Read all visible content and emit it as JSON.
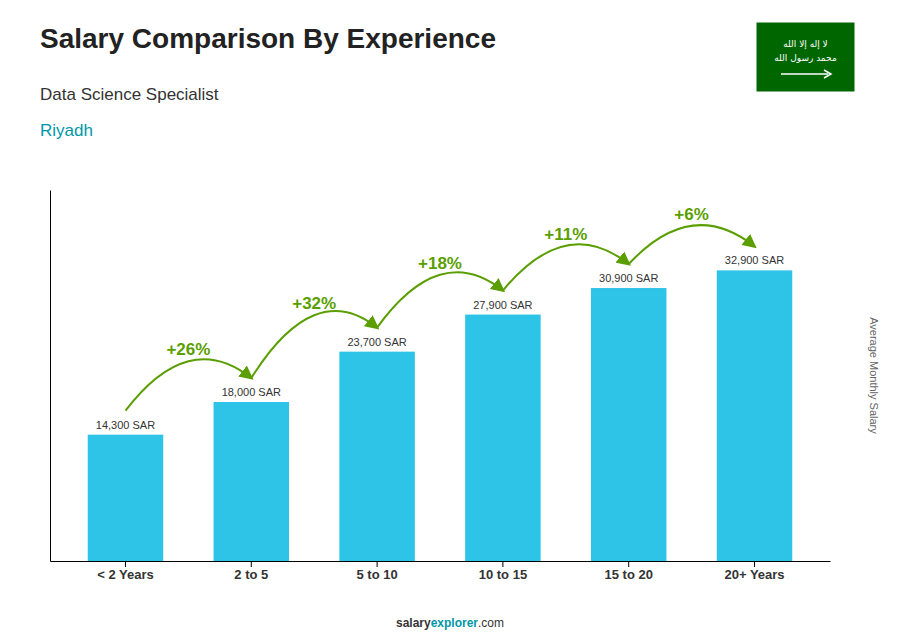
{
  "chart_data": {
    "type": "bar",
    "title": "Salary Comparison By Experience",
    "subtitle": "Data Science Specialist",
    "city": "Riyadh",
    "ylabel": "Average Monthly Salary",
    "categories": [
      "< 2 Years",
      "2 to 5",
      "5 to 10",
      "10 to 15",
      "15 to 20",
      "20+ Years"
    ],
    "values": [
      14300,
      18000,
      23700,
      27900,
      30900,
      32900
    ],
    "value_labels": [
      "14,300 SAR",
      "18,000 SAR",
      "23,700 SAR",
      "27,900 SAR",
      "30,900 SAR",
      "32,900 SAR"
    ],
    "data_labels": true,
    "annotations": [
      "+26%",
      "+32%",
      "+18%",
      "+11%",
      "+6%"
    ],
    "footer": [
      "salary",
      "explorer",
      ".com"
    ],
    "flag_text": [
      "لا إله إلا الله",
      "محمد رسول الله"
    ],
    "color": "#2ec4e8",
    "ylim": [
      0,
      42000
    ],
    "tick_labels": "x",
    "grid": false
  }
}
